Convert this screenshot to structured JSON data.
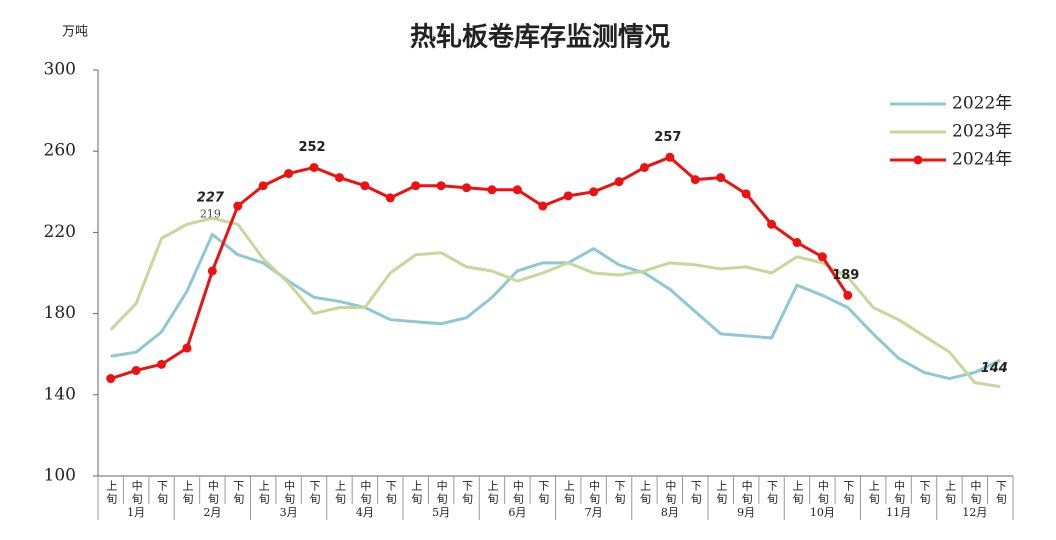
{
  "chart_data": {
    "type": "line",
    "title": "热轧板卷库存监测情况",
    "y_axis_label": "万吨",
    "categories": [
      "上旬",
      "中旬",
      "下旬",
      "上旬",
      "中旬",
      "下旬",
      "上旬",
      "中旬",
      "下旬",
      "上旬",
      "中旬",
      "下旬",
      "上旬",
      "中旬",
      "下旬",
      "上旬",
      "中旬",
      "下旬",
      "上旬",
      "中旬",
      "下旬",
      "上旬",
      "中旬",
      "下旬",
      "上旬",
      "中旬",
      "下旬",
      "上旬",
      "中旬",
      "下旬",
      "上旬",
      "中旬",
      "下旬",
      "上旬",
      "中旬",
      "下旬"
    ],
    "groups": [
      "1月",
      "2月",
      "3月",
      "4月",
      "5月",
      "6月",
      "7月",
      "8月",
      "9月",
      "10月",
      "11月",
      "12月"
    ],
    "ylim": [
      100,
      300
    ],
    "yticks": [
      100,
      140,
      180,
      220,
      260,
      300
    ],
    "legend": "upper right",
    "series": [
      {
        "name": "2022年",
        "color": "#8ec8d4",
        "values": [
          159,
          161,
          171,
          191,
          219,
          209,
          205,
          196,
          188,
          186,
          183,
          177,
          176,
          175,
          178,
          188,
          201,
          205,
          205,
          212,
          204,
          200,
          192,
          181,
          170,
          169,
          168,
          194,
          189,
          183,
          170,
          158,
          151,
          148,
          151,
          157
        ],
        "value_labels": [
          null,
          null,
          null,
          null,
          "219",
          null,
          null,
          null,
          null,
          null,
          null,
          null,
          null,
          null,
          null,
          null,
          null,
          null,
          null,
          null,
          null,
          null,
          null,
          null,
          null,
          null,
          null,
          null,
          null,
          null,
          null,
          null,
          null,
          null,
          null,
          null
        ]
      },
      {
        "name": "2023年",
        "color": "#c4d89a",
        "values": [
          172,
          185,
          217,
          224,
          227,
          224,
          207,
          195,
          180,
          183,
          183,
          200,
          209,
          210,
          203,
          201,
          196,
          200,
          205,
          200,
          199,
          201,
          205,
          204,
          202,
          203,
          200,
          208,
          205,
          198,
          183,
          177,
          169,
          161,
          146,
          144
        ],
        "value_labels": [
          null,
          null,
          null,
          null,
          "227",
          null,
          null,
          null,
          null,
          null,
          null,
          null,
          null,
          null,
          null,
          null,
          null,
          null,
          null,
          null,
          null,
          null,
          null,
          null,
          null,
          null,
          null,
          null,
          null,
          null,
          null,
          null,
          null,
          null,
          null,
          "144"
        ]
      },
      {
        "name": "2024年",
        "color": "#ee1111",
        "values": [
          148,
          152,
          155,
          163,
          201,
          233,
          243,
          249,
          252,
          247,
          243,
          237,
          243,
          243,
          242,
          241,
          241,
          233,
          238,
          240,
          245,
          252,
          257,
          246,
          247,
          239,
          224,
          215,
          208,
          189,
          null,
          null,
          null,
          null,
          null,
          null
        ],
        "value_labels": [
          null,
          null,
          null,
          null,
          null,
          null,
          null,
          null,
          "252",
          null,
          null,
          null,
          null,
          null,
          null,
          null,
          null,
          null,
          null,
          null,
          null,
          null,
          "257",
          null,
          null,
          null,
          null,
          null,
          null,
          "189",
          null,
          null,
          null,
          null,
          null,
          null
        ]
      }
    ]
  }
}
